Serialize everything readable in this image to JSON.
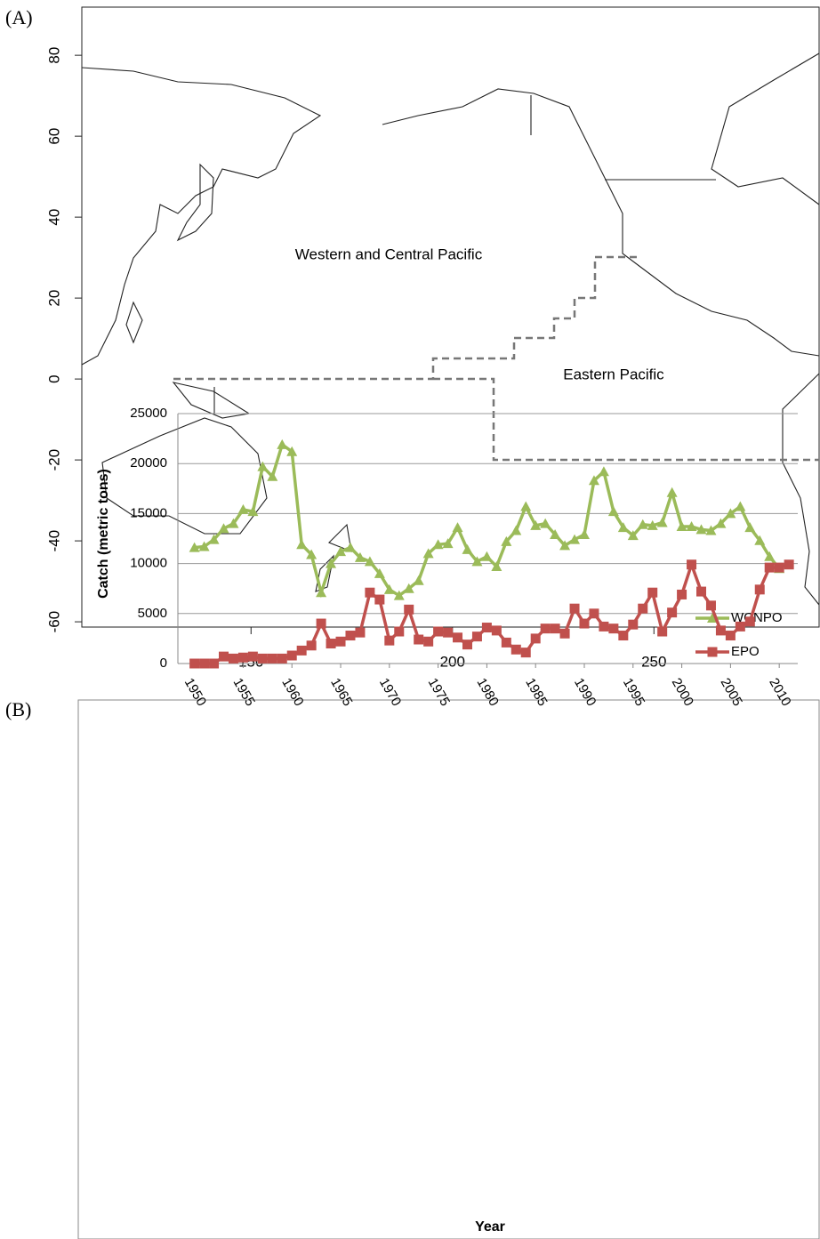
{
  "chart_data": [
    {
      "type": "map",
      "panel_label": "(A)",
      "xlim": [
        108,
        291
      ],
      "ylim": [
        -61.3,
        91.9
      ],
      "xticks": [
        150,
        200,
        250
      ],
      "yticks": [
        -60,
        -40,
        -20,
        0,
        20,
        40,
        60,
        80
      ],
      "regions": [
        "Western and Central Pacific",
        "Eastern Pacific"
      ]
    },
    {
      "type": "line",
      "panel_label": "(B)",
      "x": [
        1950,
        1951,
        1952,
        1953,
        1954,
        1955,
        1956,
        1957,
        1958,
        1959,
        1960,
        1961,
        1962,
        1963,
        1964,
        1965,
        1966,
        1967,
        1968,
        1969,
        1970,
        1971,
        1972,
        1973,
        1974,
        1975,
        1976,
        1977,
        1978,
        1979,
        1980,
        1981,
        1982,
        1983,
        1984,
        1985,
        1986,
        1987,
        1988,
        1989,
        1990,
        1991,
        1992,
        1993,
        1994,
        1995,
        1996,
        1997,
        1998,
        1999,
        2000,
        2001,
        2002,
        2003,
        2004,
        2005,
        2006,
        2007,
        2008,
        2009,
        2010,
        2011
      ],
      "series": [
        {
          "name": "WCNPO",
          "color": "#9bbb59",
          "marker": "triangle",
          "values": [
            11600,
            11700,
            12400,
            13500,
            14000,
            15400,
            15200,
            19700,
            18700,
            21900,
            21200,
            11900,
            10900,
            7100,
            10000,
            11200,
            11600,
            10600,
            10200,
            9000,
            7400,
            6800,
            7500,
            8300,
            11000,
            11900,
            12000,
            13600,
            11400,
            10200,
            10700,
            9700,
            12200,
            13300,
            15700,
            13800,
            14000,
            12900,
            11800,
            12400,
            12900,
            18300,
            19200,
            15200,
            13600,
            12800,
            13900,
            13800,
            14100,
            17100,
            13700,
            13700,
            13400,
            13300,
            14000,
            15000,
            15700,
            13600,
            12300,
            10700,
            9500,
            null
          ]
        },
        {
          "name": "EPO",
          "color": "#c0504d",
          "marker": "square",
          "values": [
            0,
            0,
            0,
            700,
            500,
            600,
            700,
            500,
            500,
            500,
            800,
            1300,
            1800,
            4000,
            2000,
            2200,
            2800,
            3100,
            7100,
            6400,
            2300,
            3200,
            5400,
            2400,
            2200,
            3200,
            3100,
            2600,
            1900,
            2700,
            3600,
            3300,
            2100,
            1400,
            1100,
            2500,
            3500,
            3500,
            3000,
            5500,
            4000,
            5000,
            3700,
            3500,
            2800,
            3900,
            5500,
            7100,
            3200,
            5100,
            6900,
            9900,
            7200,
            5800,
            3300,
            2800,
            3700,
            4200,
            7400,
            9600,
            9600,
            9900
          ]
        }
      ],
      "xlim": [
        1948.3,
        2011.9
      ],
      "ylim": [
        0,
        25000
      ],
      "xticks": [
        1950,
        1955,
        1960,
        1965,
        1970,
        1975,
        1980,
        1985,
        1990,
        1995,
        2000,
        2005,
        2010
      ],
      "yticks": [
        0,
        5000,
        10000,
        15000,
        20000,
        25000
      ],
      "ylabel": "Catch (metric tons)",
      "xlabel": "Year",
      "grid": true,
      "legend": "top-right"
    }
  ]
}
